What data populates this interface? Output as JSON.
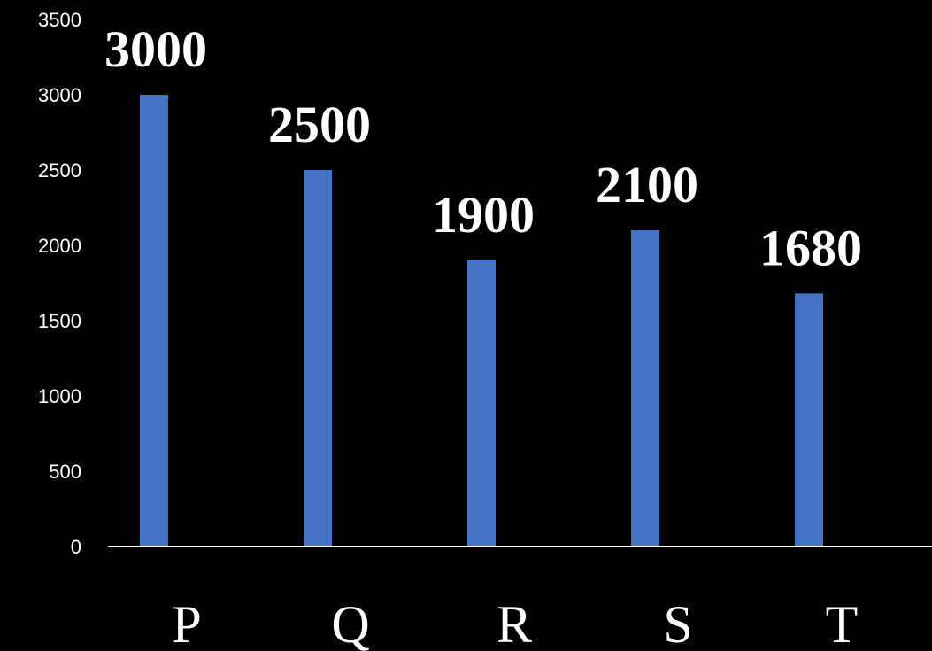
{
  "chart_data": {
    "type": "bar",
    "categories": [
      "P",
      "Q",
      "R",
      "S",
      "T"
    ],
    "values": [
      3000,
      2500,
      1900,
      2100,
      1680
    ],
    "data_labels": [
      "3000",
      "2500",
      "1900",
      "2100",
      "1680"
    ],
    "yticks": [
      "0",
      "500",
      "1000",
      "1500",
      "2000",
      "2500",
      "3000",
      "3500"
    ],
    "ylim": [
      0,
      3500
    ],
    "grid": false,
    "legend": "none",
    "colors": {
      "background": "#000000",
      "bar": "#4472C4",
      "text": "#FFFFFF",
      "axis": "#FFFFFF"
    }
  }
}
